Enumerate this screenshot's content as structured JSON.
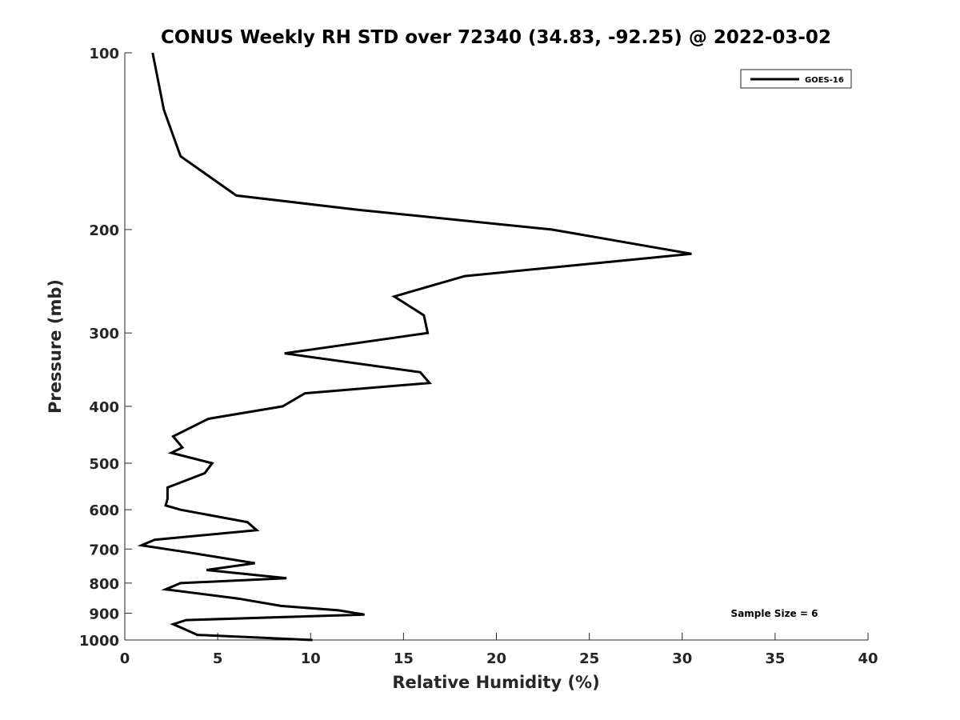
{
  "chart_data": {
    "type": "line",
    "title": "CONUS Weekly RH STD over 72340 (34.83, -92.25) @ 2022-03-02",
    "xlabel": "Relative Humidity (%)",
    "ylabel": "Pressure (mb)",
    "xlim": [
      0,
      40
    ],
    "ylim": [
      100,
      1000
    ],
    "y_scale": "log",
    "y_reversed": true,
    "x_ticks": [
      "0",
      "5",
      "10",
      "15",
      "20",
      "25",
      "30",
      "35",
      "40"
    ],
    "y_ticks": [
      "100",
      "200",
      "300",
      "400",
      "500",
      "600",
      "700",
      "800",
      "900",
      "1000"
    ],
    "grid": false,
    "legend_position": "top-right",
    "annotation": "Sample Size = 6",
    "series": [
      {
        "name": "GOES-16",
        "color": "#000000",
        "points": [
          [
            1.5,
            100
          ],
          [
            2.1,
            125
          ],
          [
            3.0,
            150
          ],
          [
            6.0,
            175
          ],
          [
            12.5,
            185
          ],
          [
            23.0,
            200
          ],
          [
            30.5,
            220
          ],
          [
            18.3,
            240
          ],
          [
            14.5,
            260
          ],
          [
            16.1,
            280
          ],
          [
            16.3,
            300
          ],
          [
            8.6,
            325
          ],
          [
            15.9,
            350
          ],
          [
            16.4,
            365
          ],
          [
            9.7,
            380
          ],
          [
            8.5,
            400
          ],
          [
            4.5,
            420
          ],
          [
            2.6,
            450
          ],
          [
            3.1,
            470
          ],
          [
            2.5,
            480
          ],
          [
            4.7,
            500
          ],
          [
            4.3,
            520
          ],
          [
            2.3,
            550
          ],
          [
            2.3,
            575
          ],
          [
            2.2,
            590
          ],
          [
            3.0,
            600
          ],
          [
            6.6,
            630
          ],
          [
            7.1,
            650
          ],
          [
            1.6,
            675
          ],
          [
            0.9,
            690
          ],
          [
            3.5,
            710
          ],
          [
            7.0,
            740
          ],
          [
            4.4,
            760
          ],
          [
            8.7,
            785
          ],
          [
            3.0,
            800
          ],
          [
            2.2,
            820
          ],
          [
            6.1,
            850
          ],
          [
            8.4,
            875
          ],
          [
            11.5,
            890
          ],
          [
            12.9,
            905
          ],
          [
            3.3,
            925
          ],
          [
            2.6,
            940
          ],
          [
            3.1,
            955
          ],
          [
            3.9,
            980
          ],
          [
            10.1,
            1000
          ]
        ]
      }
    ]
  }
}
